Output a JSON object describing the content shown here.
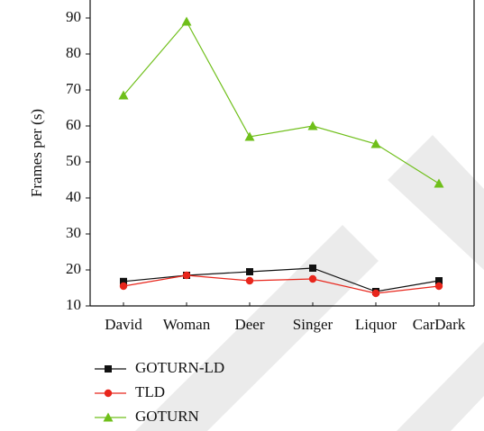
{
  "chart_data": {
    "type": "line",
    "ylabel": "Frames per (s)",
    "categories": [
      "David",
      "Woman",
      "Deer",
      "Singer",
      "Liquor",
      "CarDark"
    ],
    "series": [
      {
        "name": "GOTURN-LD",
        "color": "#111111",
        "marker": "square",
        "values": [
          16.8,
          18.5,
          19.5,
          20.5,
          14,
          17
        ]
      },
      {
        "name": "TLD",
        "color": "#e8261c",
        "marker": "circle",
        "values": [
          15.5,
          18.5,
          17,
          17.5,
          13.5,
          15.5
        ]
      },
      {
        "name": "GOTURN",
        "color": "#6fbf1a",
        "marker": "triangle",
        "values": [
          68.5,
          89,
          57,
          60,
          55,
          44
        ]
      }
    ],
    "ylim": [
      10,
      95
    ],
    "yticks": [
      10,
      20,
      30,
      40,
      50,
      60,
      70,
      80,
      90
    ]
  }
}
